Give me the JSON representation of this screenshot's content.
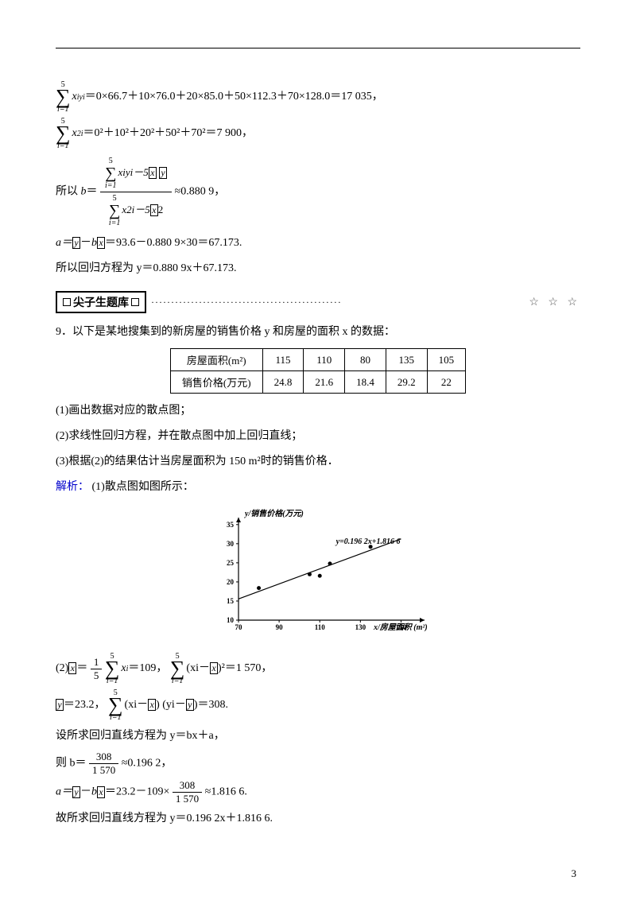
{
  "colors": {
    "text": "#000000",
    "link": "#0000cc",
    "bg": "#ffffff",
    "border": "#000000"
  },
  "sums_upper": "5",
  "sums_lower": "i=1",
  "eq1": {
    "lhs_sub": "iyi",
    "rhs": "＝0×66.7＋10×76.0＋20×85.0＋50×112.3＋70×128.0＝17 035，"
  },
  "eq2": {
    "sub": "2i",
    "rhs": "＝0²＋10²＋20²＋50²＋70²＝7 900，"
  },
  "b_formula": {
    "prefix": "所以 ",
    "b": "b",
    "eq": "＝",
    "num_tail": "xiyi－5",
    "num_tail2": " ",
    "den_tail": "x2i－5",
    "approx": "≈0.880 9，"
  },
  "a_line": "a＝y－bx＝93.6－0.880 9×30＝67.173.",
  "a_line_prefix": "a＝",
  "a_line_mid": "－",
  "a_line_rest": "＝93.6－0.880 9×30＝67.173.",
  "reg_line": "所以回归方程为 y＝0.880 9x＋67.173.",
  "banner": {
    "label": "尖子生题库",
    "stars": "☆ ☆ ☆"
  },
  "q9": {
    "title": "9．以下是某地搜集到的新房屋的销售价格 y 和房屋的面积 x 的数据：",
    "table": {
      "headers": [
        "房屋面积(m²)",
        "115",
        "110",
        "80",
        "135",
        "105"
      ],
      "row2": [
        "销售价格(万元)",
        "24.8",
        "21.6",
        "18.4",
        "29.2",
        "22"
      ]
    },
    "p1": "(1)画出数据对应的散点图；",
    "p2": "(2)求线性回归方程，并在散点图中加上回归直线；",
    "p3": "(3)根据(2)的结果估计当房屋面积为 150 m²时的销售价格．",
    "sol_label": "解析：",
    "sol1": " (1)散点图如图所示：",
    "chart": {
      "ylabel": "y/销售价格(万元)",
      "xlabel": "x/房屋面积 (m²)",
      "line_label": "y=0.196 2x+1.816 6",
      "xvals": [
        70,
        90,
        110,
        130,
        150
      ],
      "xticks": [
        "70",
        "90",
        "110",
        "130",
        "150"
      ],
      "yvals": [
        10,
        15,
        20,
        25,
        30,
        35
      ],
      "yticks": [
        "10",
        "15",
        "20",
        "25",
        "30",
        "35"
      ],
      "points": [
        [
          80,
          18.4
        ],
        [
          105,
          22
        ],
        [
          110,
          21.6
        ],
        [
          115,
          24.8
        ],
        [
          135,
          29.2
        ]
      ],
      "line": [
        [
          70,
          15.55
        ],
        [
          150,
          31.25
        ]
      ],
      "axis_color": "#000000",
      "point_color": "#000000"
    },
    "calc2_prefix": "(2)",
    "calc2_xbar": "＝",
    "calc2_frac_top": "1",
    "calc2_frac_bot": "5",
    "calc2_sum_sub": "i",
    "calc2_eq1": "＝109， ",
    "calc2_sq": "(xi－",
    "calc2_sq2": ")²＝1 570，",
    "ybar_line_pre": "＝23.2， ",
    "ybar_sum": "(xi－",
    "ybar_sum2": ") (yi－",
    "ybar_sum3": ")＝308.",
    "set_line": "设所求回归直线方程为 y＝bx＋a，",
    "b_calc_pre": "则 b＝",
    "b_frac_top": "308",
    "b_frac_bot": "1 570",
    "b_calc_post": "≈0.196 2，",
    "a_calc_pre": "a＝",
    "a_calc_mid": "－",
    "a_calc_mid2": "＝23.2－109×",
    "a_frac_top": "308",
    "a_frac_bot": "1 570",
    "a_calc_post": "≈1.816 6.",
    "final": "故所求回归直线方程为 y＝0.196 2x＋1.816 6."
  },
  "page": "3"
}
